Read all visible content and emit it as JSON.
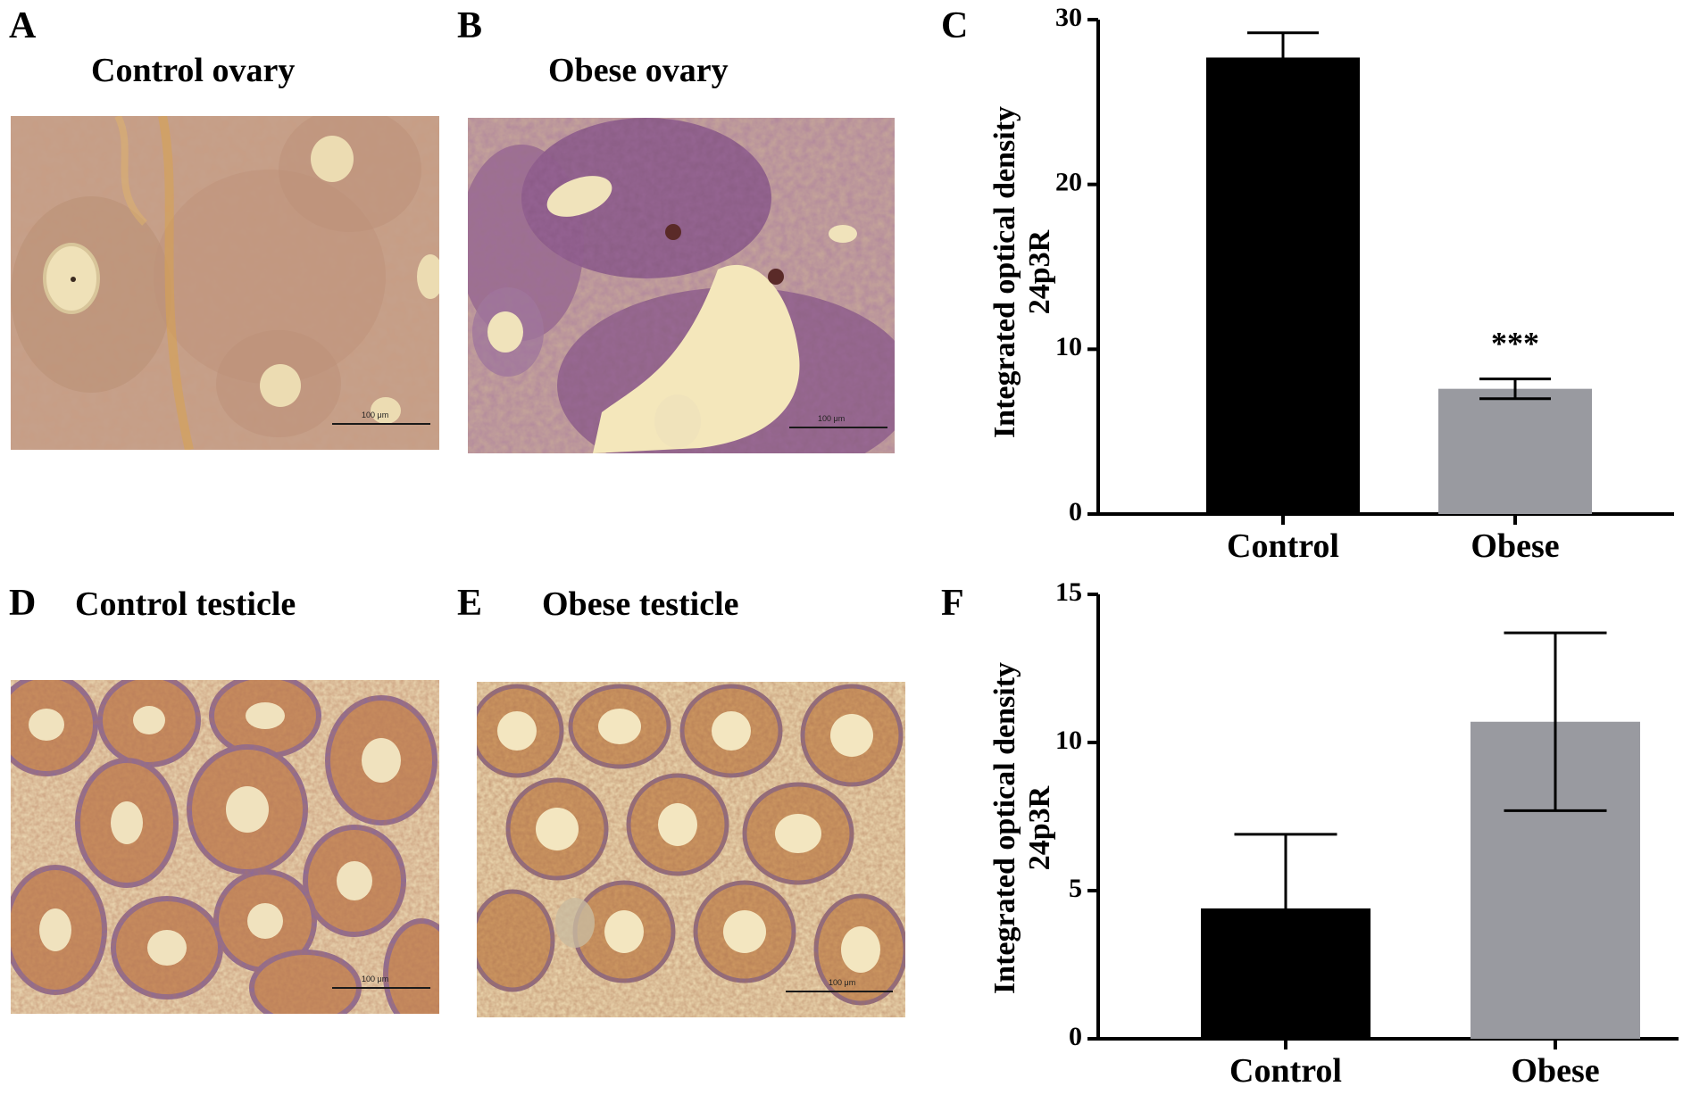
{
  "panels": {
    "A": {
      "letter": "A",
      "title": "Control ovary",
      "scale_label": "100 μm"
    },
    "B": {
      "letter": "B",
      "title": "Obese ovary",
      "scale_label": "100 μm"
    },
    "C": {
      "letter": "C"
    },
    "D": {
      "letter": "D",
      "title": "Control testicle",
      "scale_label": "100 μm"
    },
    "E": {
      "letter": "E",
      "title": "Obese testicle",
      "scale_label": "100 μm"
    },
    "F": {
      "letter": "F"
    }
  },
  "colors": {
    "control_bar": "#000000",
    "obese_bar": "#999aa0",
    "ovary_tissue": "#c49a7e",
    "testicle_tissue": "#d2a676"
  },
  "chart_data": [
    {
      "panel": "C",
      "type": "bar",
      "categories": [
        "Control",
        "Obese"
      ],
      "values": [
        27.7,
        7.6
      ],
      "error": [
        1.5,
        0.6
      ],
      "significance": [
        "",
        "***"
      ],
      "ylabel_line1": "Integrated optical density",
      "ylabel_line2": "24p3R",
      "ylim": [
        0,
        30
      ],
      "yticks": [
        0,
        10,
        20,
        30
      ],
      "grid": false
    },
    {
      "panel": "F",
      "type": "bar",
      "categories": [
        "Control",
        "Obese"
      ],
      "values": [
        4.4,
        10.7
      ],
      "error": [
        2.5,
        3.0
      ],
      "significance": [
        "",
        ""
      ],
      "ylabel_line1": "Integrated optical density",
      "ylabel_line2": "24p3R",
      "ylim": [
        0,
        15
      ],
      "yticks": [
        0,
        5,
        10,
        15
      ],
      "grid": false
    }
  ]
}
